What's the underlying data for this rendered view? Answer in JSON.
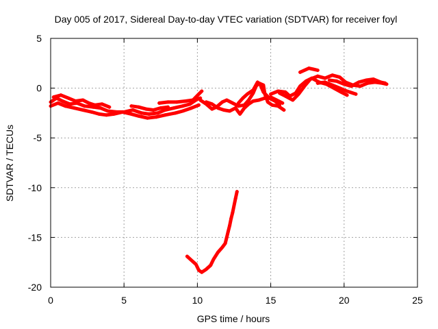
{
  "chart_data": {
    "type": "scatter",
    "title": "Day 005 of 2017, Sidereal Day-to-day VTEC variation (SDTVAR) for receiver foyl",
    "xlabel": "GPS time / hours",
    "ylabel": "SDTVAR / TECUs",
    "xlim": [
      0,
      25
    ],
    "ylim": [
      -20,
      5
    ],
    "xticks": [
      0,
      5,
      10,
      15,
      20,
      25
    ],
    "yticks": [
      5,
      0,
      -5,
      -10,
      -15,
      -20
    ],
    "grid": true,
    "series": [
      {
        "name": "SDTVAR",
        "color": "#ff0000",
        "tracks": [
          [
            [
              0.0,
              -1.4
            ],
            [
              0.4,
              -1.0
            ],
            [
              0.8,
              -1.3
            ],
            [
              1.3,
              -1.6
            ],
            [
              1.8,
              -1.5
            ],
            [
              2.3,
              -1.8
            ],
            [
              2.9,
              -1.9
            ],
            [
              3.4,
              -2.0
            ],
            [
              3.9,
              -2.3
            ],
            [
              4.5,
              -2.4
            ],
            [
              5.0,
              -2.4
            ],
            [
              5.6,
              -2.2
            ],
            [
              6.2,
              -2.5
            ],
            [
              6.7,
              -2.6
            ],
            [
              7.3,
              -2.5
            ],
            [
              7.8,
              -2.2
            ],
            [
              8.4,
              -2.0
            ],
            [
              9.0,
              -1.8
            ],
            [
              9.5,
              -1.6
            ],
            [
              10.0,
              -1.1
            ],
            [
              10.2,
              -1.0
            ]
          ],
          [
            [
              0.0,
              -1.8
            ],
            [
              0.5,
              -1.5
            ],
            [
              1.0,
              -1.8
            ],
            [
              1.6,
              -2.0
            ],
            [
              2.2,
              -2.2
            ],
            [
              2.8,
              -2.4
            ],
            [
              3.3,
              -2.6
            ],
            [
              3.8,
              -2.7
            ],
            [
              4.3,
              -2.6
            ],
            [
              4.9,
              -2.4
            ],
            [
              5.5,
              -2.6
            ],
            [
              6.0,
              -2.8
            ],
            [
              6.6,
              -3.0
            ],
            [
              7.2,
              -2.9
            ],
            [
              7.8,
              -2.7
            ],
            [
              8.5,
              -2.5
            ],
            [
              9.0,
              -2.3
            ],
            [
              9.6,
              -2.0
            ],
            [
              10.1,
              -1.7
            ]
          ],
          [
            [
              0.2,
              -0.9
            ],
            [
              0.7,
              -0.7
            ],
            [
              1.2,
              -1.0
            ],
            [
              1.7,
              -1.3
            ],
            [
              2.2,
              -1.2
            ],
            [
              2.6,
              -1.5
            ],
            [
              3.0,
              -1.7
            ],
            [
              3.5,
              -1.6
            ],
            [
              4.0,
              -1.9
            ]
          ],
          [
            [
              5.5,
              -1.8
            ],
            [
              6.0,
              -1.9
            ],
            [
              6.5,
              -2.1
            ],
            [
              7.0,
              -2.2
            ],
            [
              7.5,
              -2.0
            ],
            [
              8.0,
              -1.9
            ]
          ],
          [
            [
              7.4,
              -1.5
            ],
            [
              8.0,
              -1.4
            ],
            [
              8.6,
              -1.4
            ],
            [
              9.2,
              -1.3
            ],
            [
              9.7,
              -1.2
            ],
            [
              10.1,
              -0.6
            ],
            [
              10.3,
              -0.3
            ]
          ],
          [
            [
              10.2,
              -1.2
            ],
            [
              10.6,
              -1.6
            ],
            [
              11.0,
              -2.1
            ],
            [
              11.3,
              -1.9
            ],
            [
              11.7,
              -1.4
            ],
            [
              12.0,
              -1.2
            ],
            [
              12.4,
              -1.5
            ],
            [
              12.8,
              -1.8
            ],
            [
              13.2,
              -1.7
            ],
            [
              13.5,
              -1.2
            ],
            [
              13.8,
              -0.5
            ],
            [
              14.0,
              0.2
            ],
            [
              14.2,
              0.5
            ],
            [
              14.5,
              0.3
            ],
            [
              14.6,
              -0.6
            ],
            [
              14.8,
              -1.4
            ],
            [
              15.1,
              -1.7
            ],
            [
              15.5,
              -1.8
            ],
            [
              15.9,
              -2.2
            ]
          ],
          [
            [
              10.6,
              -1.4
            ],
            [
              11.0,
              -1.6
            ],
            [
              11.4,
              -2.0
            ],
            [
              11.8,
              -2.2
            ],
            [
              12.2,
              -2.3
            ],
            [
              12.6,
              -2.0
            ],
            [
              12.9,
              -2.6
            ],
            [
              13.2,
              -2.0
            ],
            [
              13.5,
              -1.6
            ],
            [
              13.8,
              -1.3
            ],
            [
              14.2,
              -1.2
            ],
            [
              14.6,
              -1.0
            ],
            [
              15.0,
              -0.9
            ],
            [
              15.4,
              -1.2
            ],
            [
              15.8,
              -1.5
            ]
          ],
          [
            [
              12.8,
              -1.5
            ],
            [
              13.1,
              -1.0
            ],
            [
              13.4,
              -0.6
            ],
            [
              13.8,
              -0.2
            ],
            [
              14.1,
              0.6
            ],
            [
              14.3,
              0.3
            ],
            [
              14.5,
              -0.4
            ],
            [
              14.9,
              -1.0
            ],
            [
              15.3,
              -1.3
            ],
            [
              15.6,
              -1.7
            ]
          ],
          [
            [
              15.0,
              -0.6
            ],
            [
              15.5,
              -0.3
            ],
            [
              16.0,
              -0.4
            ],
            [
              16.3,
              -0.8
            ],
            [
              16.7,
              -0.5
            ],
            [
              17.0,
              0.2
            ],
            [
              17.4,
              0.7
            ],
            [
              17.8,
              1.0
            ],
            [
              18.3,
              0.6
            ],
            [
              18.8,
              0.4
            ],
            [
              19.3,
              0.0
            ],
            [
              19.8,
              -0.4
            ],
            [
              20.2,
              -0.7
            ]
          ],
          [
            [
              15.6,
              -0.5
            ],
            [
              16.0,
              -0.8
            ],
            [
              16.5,
              -1.2
            ],
            [
              16.9,
              -0.6
            ],
            [
              17.3,
              0.2
            ],
            [
              17.7,
              0.9
            ],
            [
              18.2,
              1.2
            ],
            [
              18.7,
              1.0
            ],
            [
              19.2,
              1.3
            ],
            [
              19.7,
              1.1
            ],
            [
              20.1,
              0.6
            ],
            [
              20.6,
              0.3
            ],
            [
              21.1,
              0.2
            ],
            [
              21.6,
              0.5
            ],
            [
              22.1,
              0.6
            ],
            [
              22.6,
              0.5
            ],
            [
              22.9,
              0.4
            ]
          ],
          [
            [
              17.0,
              1.6
            ],
            [
              17.3,
              1.8
            ],
            [
              17.6,
              2.0
            ],
            [
              17.9,
              1.9
            ],
            [
              18.2,
              1.8
            ]
          ],
          [
            [
              18.2,
              0.5
            ],
            [
              18.7,
              0.6
            ],
            [
              19.2,
              0.3
            ],
            [
              19.7,
              0.0
            ],
            [
              20.2,
              -0.3
            ],
            [
              20.6,
              -0.5
            ],
            [
              20.8,
              -0.6
            ]
          ],
          [
            [
              19.0,
              0.8
            ],
            [
              19.5,
              0.7
            ],
            [
              20.0,
              0.4
            ],
            [
              20.5,
              0.2
            ],
            [
              21.0,
              0.6
            ],
            [
              21.5,
              0.8
            ],
            [
              22.0,
              0.9
            ],
            [
              22.5,
              0.6
            ],
            [
              22.8,
              0.5
            ]
          ],
          [
            [
              9.3,
              -16.9
            ],
            [
              9.6,
              -17.3
            ],
            [
              9.9,
              -17.7
            ],
            [
              10.1,
              -18.3
            ],
            [
              10.3,
              -18.5
            ],
            [
              10.6,
              -18.2
            ],
            [
              10.9,
              -17.8
            ],
            [
              11.1,
              -17.2
            ],
            [
              11.4,
              -16.5
            ],
            [
              11.7,
              -16.0
            ],
            [
              11.9,
              -15.6
            ],
            [
              12.0,
              -15.0
            ],
            [
              12.1,
              -14.4
            ],
            [
              12.2,
              -13.8
            ],
            [
              12.3,
              -13.1
            ],
            [
              12.4,
              -12.5
            ],
            [
              12.5,
              -11.8
            ],
            [
              12.6,
              -11.1
            ],
            [
              12.7,
              -10.4
            ]
          ]
        ]
      }
    ]
  }
}
